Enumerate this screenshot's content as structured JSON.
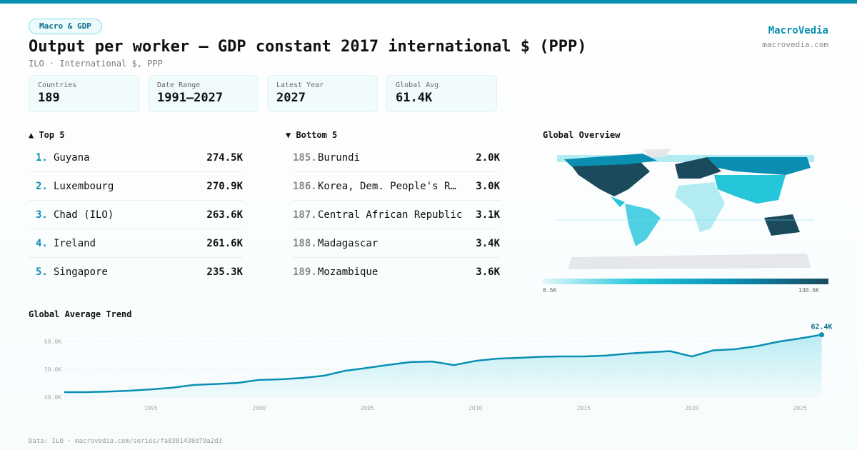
{
  "header": {
    "tag": "Macro & GDP",
    "title": "Output per worker – GDP constant 2017 international $ (PPP)",
    "subtitle": "ILO · International $, PPP",
    "brand": "MacroVedia",
    "brand_url": "macrovedia.com"
  },
  "stats": [
    {
      "label": "Countries",
      "value": "189"
    },
    {
      "label": "Date Range",
      "value": "1991–2027"
    },
    {
      "label": "Latest Year",
      "value": "2027"
    },
    {
      "label": "Global Avg",
      "value": "61.4K"
    }
  ],
  "top5": {
    "heading": "▲ Top 5",
    "items": [
      {
        "rank": "1.",
        "name": "Guyana",
        "value": "274.5K"
      },
      {
        "rank": "2.",
        "name": "Luxembourg",
        "value": "270.9K"
      },
      {
        "rank": "3.",
        "name": "Chad (ILO)",
        "value": "263.6K"
      },
      {
        "rank": "4.",
        "name": "Ireland",
        "value": "261.6K"
      },
      {
        "rank": "5.",
        "name": "Singapore",
        "value": "235.3K"
      }
    ]
  },
  "bottom5": {
    "heading": "▼ Bottom 5",
    "items": [
      {
        "rank": "185.",
        "name": "Burundi",
        "value": "2.0K"
      },
      {
        "rank": "186.",
        "name": "Korea, Dem. People's R…",
        "value": "3.0K"
      },
      {
        "rank": "187.",
        "name": "Central African Republic",
        "value": "3.1K"
      },
      {
        "rank": "188.",
        "name": "Madagascar",
        "value": "3.4K"
      },
      {
        "rank": "189.",
        "name": "Mozambique",
        "value": "3.6K"
      }
    ]
  },
  "map": {
    "title": "Global Overview",
    "legend_min": "8.5K",
    "legend_max": "130.6K",
    "colors": [
      "#e0f7fa",
      "#26c6da",
      "#0a8fb3",
      "#1a4a5c"
    ]
  },
  "chart_data": {
    "type": "area",
    "title": "Global Average Trend",
    "x": [
      1991,
      1992,
      1993,
      1994,
      1995,
      1996,
      1997,
      1998,
      1999,
      2000,
      2001,
      2002,
      2003,
      2004,
      2005,
      2006,
      2007,
      2008,
      2009,
      2010,
      2011,
      2012,
      2013,
      2014,
      2015,
      2016,
      2017,
      2018,
      2019,
      2020,
      2021,
      2022,
      2023,
      2024,
      2025,
      2026
    ],
    "values": [
      41.8,
      41.8,
      42.0,
      42.3,
      42.8,
      43.4,
      44.4,
      44.7,
      45.1,
      46.2,
      46.4,
      46.9,
      47.7,
      49.5,
      50.5,
      51.6,
      52.6,
      52.8,
      51.5,
      53.0,
      53.8,
      54.1,
      54.5,
      54.6,
      54.6,
      54.9,
      55.6,
      56.1,
      56.5,
      54.6,
      56.8,
      57.2,
      58.3,
      59.9,
      61.1,
      62.4
    ],
    "unit": "K",
    "ylim": [
      40,
      62.4
    ],
    "yticks": [
      "40.0K",
      "50.0K",
      "60.0K"
    ],
    "xticks": [
      "1995",
      "2000",
      "2005",
      "2010",
      "2015",
      "2020",
      "2025"
    ],
    "last_label": "62.4K",
    "color": "#0a8fb3",
    "grid": true
  },
  "footer": "Data: ILO · macrovedia.com/series/fa8381438d79a2d3"
}
